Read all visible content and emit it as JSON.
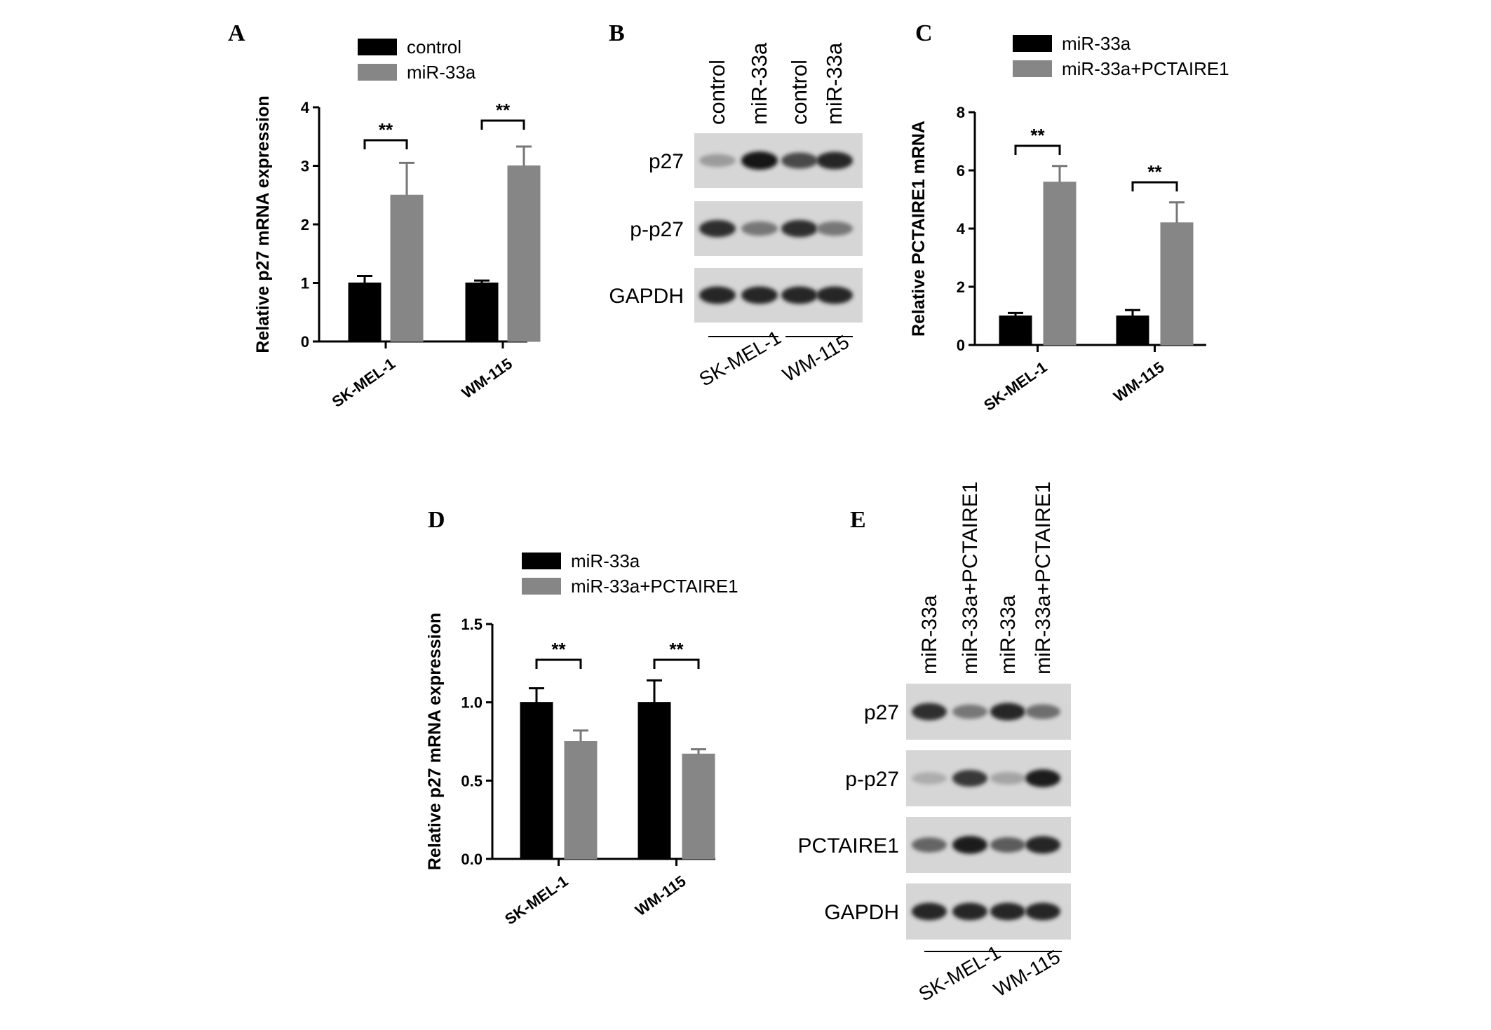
{
  "colors": {
    "control": "#000000",
    "treated": "#868686",
    "axis": "#000000",
    "blot_bg": "#d6d6d6"
  },
  "chart_data": [
    {
      "panel": "A",
      "type": "bar",
      "ylabel": "Relative p27 mRNA expression",
      "ylim": [
        0,
        4
      ],
      "yticks": [
        "0",
        "1",
        "2",
        "3",
        "4"
      ],
      "categories": [
        "SK-MEL-1",
        "WM-115"
      ],
      "series": [
        {
          "name": "control",
          "values": [
            1.0,
            1.0
          ],
          "errors": [
            0.12,
            0.04
          ],
          "color": "#000000"
        },
        {
          "name": "miR-33a",
          "values": [
            2.5,
            3.0
          ],
          "errors": [
            0.55,
            0.33
          ],
          "color": "#868686"
        }
      ],
      "significance": [
        "**",
        "**"
      ],
      "legend": "top"
    },
    {
      "panel": "C",
      "type": "bar",
      "ylabel": "Relative PCTAIRE1 mRNA",
      "ylim": [
        0,
        8
      ],
      "yticks": [
        "0",
        "2",
        "4",
        "6",
        "8"
      ],
      "categories": [
        "SK-MEL-1",
        "WM-115"
      ],
      "series": [
        {
          "name": "miR-33a",
          "values": [
            1.0,
            1.0
          ],
          "errors": [
            0.1,
            0.2
          ],
          "color": "#000000"
        },
        {
          "name": "miR-33a+PCTAIRE1",
          "values": [
            5.6,
            4.2
          ],
          "errors": [
            0.55,
            0.7
          ],
          "color": "#868686"
        }
      ],
      "significance": [
        "**",
        "**"
      ],
      "legend": "top"
    },
    {
      "panel": "D",
      "type": "bar",
      "ylabel": "Relative p27 mRNA expression",
      "ylim": [
        0,
        1.5
      ],
      "yticks": [
        "0.0",
        "0.5",
        "1.0",
        "1.5"
      ],
      "categories": [
        "SK-MEL-1",
        "WM-115"
      ],
      "series": [
        {
          "name": "miR-33a",
          "values": [
            1.0,
            1.0
          ],
          "errors": [
            0.09,
            0.14
          ],
          "color": "#000000"
        },
        {
          "name": "miR-33a+PCTAIRE1",
          "values": [
            0.75,
            0.67
          ],
          "errors": [
            0.07,
            0.03
          ],
          "color": "#868686"
        }
      ],
      "significance": [
        "**",
        "**"
      ],
      "legend": "top"
    }
  ],
  "blots": [
    {
      "panel": "B",
      "lanes": [
        "control",
        "miR-33a",
        "control",
        "miR-33a"
      ],
      "rows": [
        {
          "label": "p27",
          "intensities": [
            0.25,
            1.0,
            0.7,
            0.9
          ]
        },
        {
          "label": "p-p27",
          "intensities": [
            0.85,
            0.45,
            0.85,
            0.45
          ]
        },
        {
          "label": "GAPDH",
          "intensities": [
            0.9,
            0.9,
            0.9,
            0.9
          ]
        }
      ],
      "groups": [
        "SK-MEL-1",
        "WM-115"
      ]
    },
    {
      "panel": "E",
      "lanes": [
        "miR-33a",
        "miR-33a+PCTAIRE1",
        "miR-33a",
        "miR-33a+PCTAIRE1"
      ],
      "rows": [
        {
          "label": "p27",
          "intensities": [
            0.85,
            0.45,
            0.9,
            0.5
          ]
        },
        {
          "label": "p-p27",
          "intensities": [
            0.15,
            0.8,
            0.2,
            0.95
          ]
        },
        {
          "label": "PCTAIRE1",
          "intensities": [
            0.55,
            0.95,
            0.6,
            0.9
          ]
        },
        {
          "label": "GAPDH",
          "intensities": [
            0.9,
            0.9,
            0.9,
            0.9
          ]
        }
      ],
      "groups": [
        "SK-MEL-1",
        "WM-115"
      ]
    }
  ]
}
